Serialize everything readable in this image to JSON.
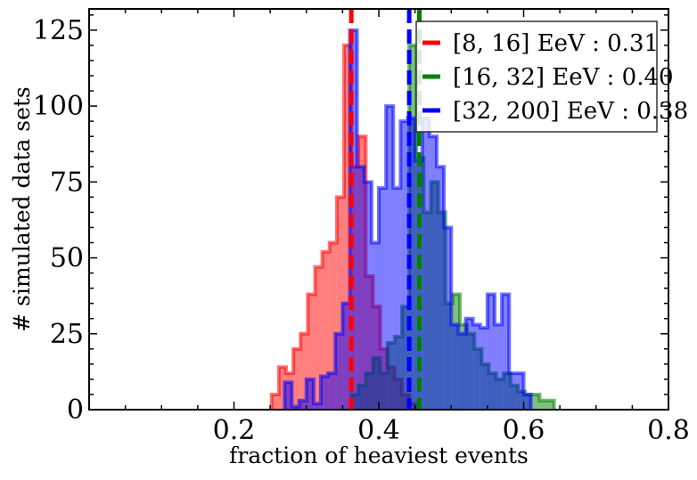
{
  "chart_data": {
    "type": "histogram",
    "xlabel": "fraction of heaviest events",
    "ylabel": "# simulated data sets",
    "xlim": [
      0.0,
      0.8
    ],
    "ylim": [
      0,
      132
    ],
    "xticks": [
      0.2,
      0.4,
      0.6,
      0.8
    ],
    "xtick_labels": [
      "0.2",
      "0.4",
      "0.6",
      "0.8"
    ],
    "yticks": [
      0,
      25,
      50,
      75,
      100,
      125
    ],
    "ytick_labels": [
      "0",
      "25",
      "50",
      "75",
      "100",
      "125"
    ],
    "grid": false,
    "legend_position": "top-right",
    "series": [
      {
        "name": "[8, 16] EeV : 0.31",
        "color": "#ff0000",
        "vline_x": 0.362,
        "bins": [
          [
            0.252,
            0.262,
            5
          ],
          [
            0.262,
            0.272,
            14
          ],
          [
            0.272,
            0.282,
            12
          ],
          [
            0.282,
            0.292,
            20
          ],
          [
            0.292,
            0.302,
            25
          ],
          [
            0.302,
            0.312,
            38
          ],
          [
            0.312,
            0.322,
            47
          ],
          [
            0.322,
            0.332,
            52
          ],
          [
            0.332,
            0.342,
            55
          ],
          [
            0.342,
            0.352,
            70
          ],
          [
            0.352,
            0.362,
            120
          ],
          [
            0.362,
            0.372,
            80
          ],
          [
            0.372,
            0.382,
            90
          ],
          [
            0.382,
            0.392,
            44
          ],
          [
            0.392,
            0.402,
            34
          ],
          [
            0.402,
            0.412,
            20
          ],
          [
            0.412,
            0.422,
            14
          ],
          [
            0.422,
            0.432,
            10
          ],
          [
            0.432,
            0.442,
            5
          ],
          [
            0.442,
            0.452,
            2
          ]
        ]
      },
      {
        "name": "[16, 32] EeV : 0.40",
        "color": "#008000",
        "vline_x": 0.456,
        "bins": [
          [
            0.362,
            0.372,
            5
          ],
          [
            0.372,
            0.382,
            8
          ],
          [
            0.382,
            0.392,
            12
          ],
          [
            0.392,
            0.402,
            17
          ],
          [
            0.402,
            0.412,
            12
          ],
          [
            0.412,
            0.422,
            22
          ],
          [
            0.422,
            0.432,
            24
          ],
          [
            0.432,
            0.442,
            34
          ],
          [
            0.442,
            0.452,
            120
          ],
          [
            0.452,
            0.462,
            83
          ],
          [
            0.462,
            0.472,
            65
          ],
          [
            0.472,
            0.482,
            75
          ],
          [
            0.482,
            0.492,
            65
          ],
          [
            0.492,
            0.502,
            35
          ],
          [
            0.502,
            0.512,
            38
          ],
          [
            0.512,
            0.522,
            28
          ],
          [
            0.522,
            0.532,
            25
          ],
          [
            0.532,
            0.542,
            20
          ],
          [
            0.542,
            0.552,
            15
          ],
          [
            0.552,
            0.562,
            12
          ],
          [
            0.562,
            0.572,
            10
          ],
          [
            0.572,
            0.582,
            12
          ],
          [
            0.582,
            0.592,
            8
          ],
          [
            0.592,
            0.602,
            6
          ],
          [
            0.602,
            0.622,
            5
          ],
          [
            0.622,
            0.642,
            3
          ]
        ]
      },
      {
        "name": "[32, 200] EeV : 0.38",
        "color": "#0000ff",
        "vline_x": 0.442,
        "bins": [
          [
            0.27,
            0.28,
            9
          ],
          [
            0.28,
            0.29,
            1
          ],
          [
            0.29,
            0.3,
            3
          ],
          [
            0.3,
            0.31,
            10
          ],
          [
            0.31,
            0.32,
            2
          ],
          [
            0.32,
            0.33,
            11
          ],
          [
            0.33,
            0.34,
            12
          ],
          [
            0.34,
            0.35,
            25
          ],
          [
            0.35,
            0.36,
            35
          ],
          [
            0.36,
            0.37,
            125
          ],
          [
            0.37,
            0.38,
            80
          ],
          [
            0.38,
            0.39,
            75
          ],
          [
            0.39,
            0.4,
            55
          ],
          [
            0.4,
            0.41,
            73
          ],
          [
            0.41,
            0.42,
            100
          ],
          [
            0.42,
            0.43,
            73
          ],
          [
            0.43,
            0.44,
            95
          ],
          [
            0.44,
            0.45,
            96
          ],
          [
            0.45,
            0.46,
            82
          ],
          [
            0.46,
            0.47,
            96
          ],
          [
            0.47,
            0.48,
            90
          ],
          [
            0.48,
            0.49,
            80
          ],
          [
            0.49,
            0.5,
            60
          ],
          [
            0.5,
            0.51,
            28
          ],
          [
            0.51,
            0.52,
            25
          ],
          [
            0.52,
            0.53,
            30
          ],
          [
            0.53,
            0.54,
            28
          ],
          [
            0.54,
            0.55,
            27
          ],
          [
            0.55,
            0.56,
            38
          ],
          [
            0.56,
            0.57,
            28
          ],
          [
            0.57,
            0.58,
            38
          ],
          [
            0.58,
            0.59,
            12
          ],
          [
            0.59,
            0.6,
            12
          ],
          [
            0.6,
            0.61,
            5
          ]
        ]
      }
    ]
  }
}
